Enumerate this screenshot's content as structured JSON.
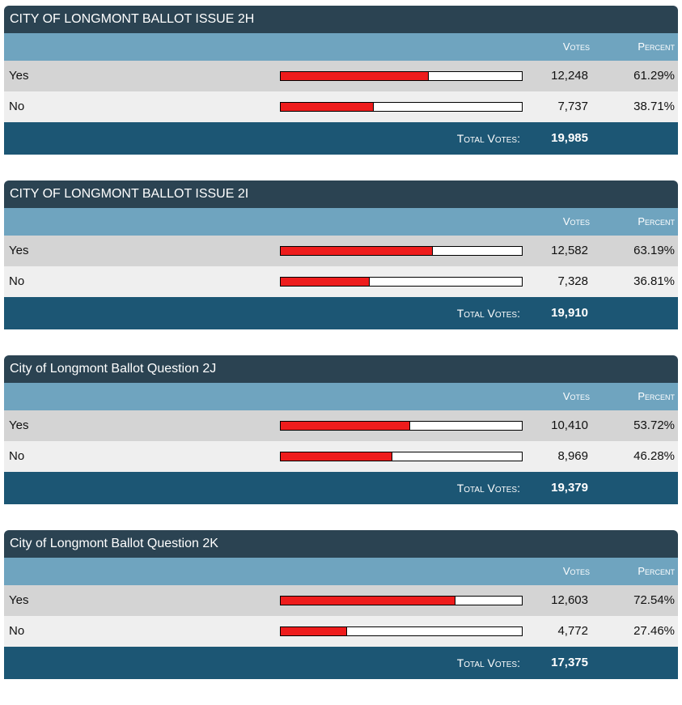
{
  "colors": {
    "title_bg": "#2b4352",
    "header_bg": "#6fa4bf",
    "row_odd_bg": "#d4d4d4",
    "row_even_bg": "#efefef",
    "total_bg": "#1c5674",
    "bar_fill": "#ee1c1c"
  },
  "races": [
    {
      "title": "CITY OF LONGMONT BALLOT ISSUE 2H",
      "votes_header": "Votes",
      "percent_header": "Percent",
      "options": [
        {
          "name": "Yes",
          "votes": "12,248",
          "percent": "61.29%",
          "share": 0.6129
        },
        {
          "name": "No",
          "votes": "7,737",
          "percent": "38.71%",
          "share": 0.3871
        }
      ],
      "total_label": "Total Votes:",
      "total_votes": "19,985"
    },
    {
      "title": "CITY OF LONGMONT BALLOT ISSUE 2I",
      "votes_header": "Votes",
      "percent_header": "Percent",
      "options": [
        {
          "name": "Yes",
          "votes": "12,582",
          "percent": "63.19%",
          "share": 0.6319
        },
        {
          "name": "No",
          "votes": "7,328",
          "percent": "36.81%",
          "share": 0.3681
        }
      ],
      "total_label": "Total Votes:",
      "total_votes": "19,910"
    },
    {
      "title": "City of Longmont Ballot Question 2J",
      "votes_header": "Votes",
      "percent_header": "Percent",
      "options": [
        {
          "name": "Yes",
          "votes": "10,410",
          "percent": "53.72%",
          "share": 0.5372
        },
        {
          "name": "No",
          "votes": "8,969",
          "percent": "46.28%",
          "share": 0.4628
        }
      ],
      "total_label": "Total Votes:",
      "total_votes": "19,379"
    },
    {
      "title": "City of Longmont Ballot Question 2K",
      "votes_header": "Votes",
      "percent_header": "Percent",
      "options": [
        {
          "name": "Yes",
          "votes": "12,603",
          "percent": "72.54%",
          "share": 0.7254
        },
        {
          "name": "No",
          "votes": "4,772",
          "percent": "27.46%",
          "share": 0.2746
        }
      ],
      "total_label": "Total Votes:",
      "total_votes": "17,375"
    }
  ]
}
